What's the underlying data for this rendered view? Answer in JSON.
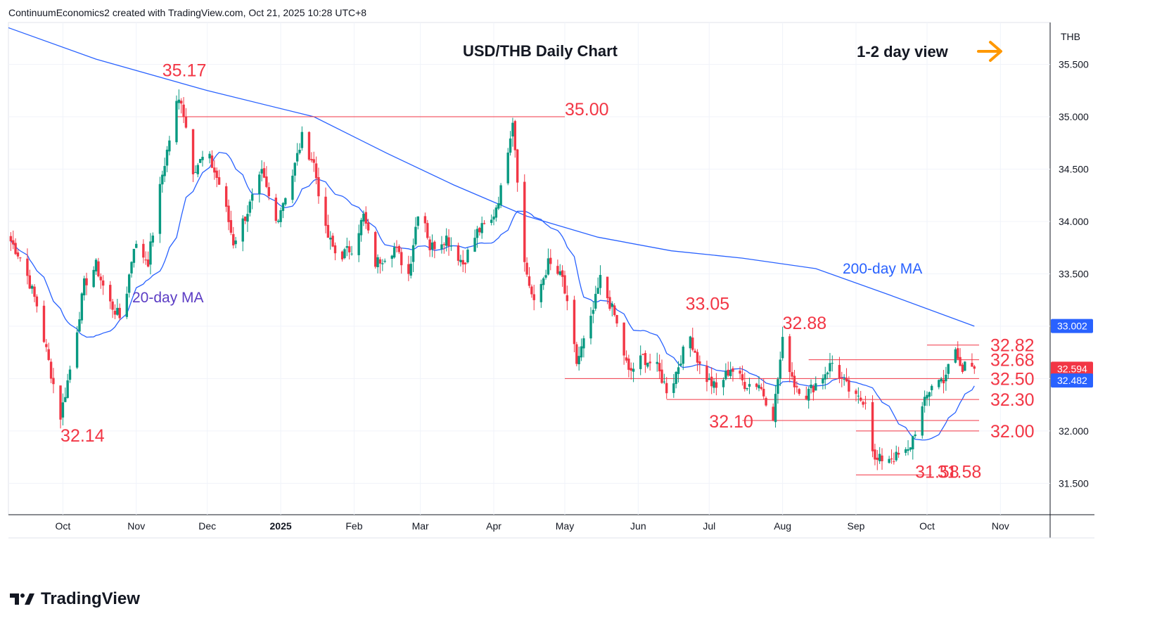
{
  "header": {
    "credit": "ContinuumEconomics2 created with TradingView.com, Oct 21, 2025 10:28 UTC+8"
  },
  "footer": {
    "brand": "TradingView",
    "logo_icon": "tradingview-logo-icon"
  },
  "colors": {
    "up": "#089981",
    "down": "#f23645",
    "ma20": "#2962ff",
    "ma200": "#2962ff",
    "level_line": "#f23645",
    "annotation": "#f23645",
    "ma20_label": "#5b3cc4",
    "ma200_label": "#2962ff",
    "arrow": "#ff9800",
    "last_price_badge": "#f23645",
    "ma_badge": "#2962ff",
    "ma200_badge": "#2962ff"
  },
  "chart_data": {
    "type": "candlestick",
    "title": "USD/THB Daily Chart",
    "view_label": "1-2 day view",
    "view_arrow_icon": "arrow-right-icon",
    "currency": "THB",
    "ylim": [
      31.2,
      35.9
    ],
    "y_ticks": [
      "31.500",
      "32.000",
      "32.500",
      "33.000",
      "33.500",
      "34.000",
      "34.500",
      "35.000",
      "35.500"
    ],
    "x_ticks": [
      {
        "label": "Oct",
        "date": "2024-10-01"
      },
      {
        "label": "Nov",
        "date": "2024-11-01"
      },
      {
        "label": "Dec",
        "date": "2024-12-01"
      },
      {
        "label": "2025",
        "date": "2025-01-01",
        "bold": true
      },
      {
        "label": "Feb",
        "date": "2025-02-01"
      },
      {
        "label": "Mar",
        "date": "2025-03-01"
      },
      {
        "label": "Apr",
        "date": "2025-04-01"
      },
      {
        "label": "May",
        "date": "2025-05-01"
      },
      {
        "label": "Jun",
        "date": "2025-06-01"
      },
      {
        "label": "Jul",
        "date": "2025-07-01"
      },
      {
        "label": "Aug",
        "date": "2025-08-01"
      },
      {
        "label": "Sep",
        "date": "2025-09-01"
      },
      {
        "label": "Oct",
        "date": "2025-10-01"
      },
      {
        "label": "Nov",
        "date": "2025-11-01"
      }
    ],
    "anchor_points": [
      [
        "2024-09-08",
        33.85
      ],
      [
        "2024-09-14",
        33.62
      ],
      [
        "2024-09-20",
        33.2
      ],
      [
        "2024-09-26",
        32.55
      ],
      [
        "2024-09-30",
        32.14
      ],
      [
        "2024-10-05",
        32.7
      ],
      [
        "2024-10-10",
        33.4
      ],
      [
        "2024-10-15",
        33.58
      ],
      [
        "2024-10-20",
        33.25
      ],
      [
        "2024-10-26",
        33.05
      ],
      [
        "2024-10-31",
        33.78
      ],
      [
        "2024-11-06",
        33.62
      ],
      [
        "2024-11-12",
        34.45
      ],
      [
        "2024-11-18",
        35.12
      ],
      [
        "2024-11-20",
        35.17
      ],
      [
        "2024-11-25",
        34.5
      ],
      [
        "2024-12-01",
        34.65
      ],
      [
        "2024-12-07",
        34.3
      ],
      [
        "2024-12-12",
        33.8
      ],
      [
        "2024-12-18",
        34.1
      ],
      [
        "2024-12-24",
        34.45
      ],
      [
        "2024-12-30",
        34.0
      ],
      [
        "2025-01-06",
        34.45
      ],
      [
        "2025-01-10",
        34.8
      ],
      [
        "2025-01-15",
        34.55
      ],
      [
        "2025-01-20",
        33.9
      ],
      [
        "2025-01-25",
        33.65
      ],
      [
        "2025-01-31",
        33.75
      ],
      [
        "2025-02-05",
        34.05
      ],
      [
        "2025-02-10",
        33.6
      ],
      [
        "2025-02-18",
        33.75
      ],
      [
        "2025-02-24",
        33.5
      ],
      [
        "2025-03-01",
        34.25
      ],
      [
        "2025-03-05",
        33.75
      ],
      [
        "2025-03-12",
        33.85
      ],
      [
        "2025-03-19",
        33.6
      ],
      [
        "2025-03-25",
        33.9
      ],
      [
        "2025-03-31",
        34.0
      ],
      [
        "2025-04-04",
        34.3
      ],
      [
        "2025-04-09",
        34.98
      ],
      [
        "2025-04-14",
        33.6
      ],
      [
        "2025-04-18",
        33.2
      ],
      [
        "2025-04-24",
        33.6
      ],
      [
        "2025-04-30",
        33.45
      ],
      [
        "2025-05-06",
        32.65
      ],
      [
        "2025-05-12",
        33.05
      ],
      [
        "2025-05-16",
        33.45
      ],
      [
        "2025-05-22",
        33.1
      ],
      [
        "2025-05-28",
        32.55
      ],
      [
        "2025-06-03",
        32.7
      ],
      [
        "2025-06-09",
        32.6
      ],
      [
        "2025-06-14",
        32.35
      ],
      [
        "2025-06-19",
        32.7
      ],
      [
        "2025-06-23",
        32.9
      ],
      [
        "2025-06-28",
        32.55
      ],
      [
        "2025-07-04",
        32.4
      ],
      [
        "2025-07-10",
        32.6
      ],
      [
        "2025-07-16",
        32.45
      ],
      [
        "2025-07-22",
        32.45
      ],
      [
        "2025-07-28",
        32.15
      ],
      [
        "2025-08-01",
        32.85
      ],
      [
        "2025-08-06",
        32.45
      ],
      [
        "2025-08-11",
        32.35
      ],
      [
        "2025-08-17",
        32.5
      ],
      [
        "2025-08-22",
        32.65
      ],
      [
        "2025-08-27",
        32.45
      ],
      [
        "2025-09-01",
        32.3
      ],
      [
        "2025-09-05",
        32.3
      ],
      [
        "2025-09-09",
        31.7
      ],
      [
        "2025-09-13",
        31.75
      ],
      [
        "2025-09-18",
        31.75
      ],
      [
        "2025-09-23",
        31.8
      ],
      [
        "2025-09-28",
        32.15
      ],
      [
        "2025-10-03",
        32.45
      ],
      [
        "2025-10-08",
        32.5
      ],
      [
        "2025-10-13",
        32.75
      ],
      [
        "2025-10-16",
        32.55
      ],
      [
        "2025-10-18",
        32.8
      ],
      [
        "2025-10-21",
        32.594
      ]
    ],
    "ma200_points": [
      [
        "2024-09-08",
        35.85
      ],
      [
        "2024-10-15",
        35.55
      ],
      [
        "2024-12-01",
        35.25
      ],
      [
        "2025-01-15",
        35.0
      ],
      [
        "2025-02-15",
        34.65
      ],
      [
        "2025-03-15",
        34.35
      ],
      [
        "2025-04-15",
        34.05
      ],
      [
        "2025-05-15",
        33.85
      ],
      [
        "2025-06-15",
        33.72
      ],
      [
        "2025-07-15",
        33.65
      ],
      [
        "2025-08-15",
        33.55
      ],
      [
        "2025-09-15",
        33.3
      ],
      [
        "2025-10-21",
        33.0
      ]
    ],
    "levels": [
      {
        "value": 35.0,
        "label": "35.00",
        "from": "2024-11-18",
        "to": "2025-05-01"
      },
      {
        "value": 32.82,
        "label": "32.82",
        "from": "2025-10-01",
        "to": "2025-10-23"
      },
      {
        "value": 32.68,
        "label": "32.68",
        "from": "2025-08-12",
        "to": "2025-10-23"
      },
      {
        "value": 32.5,
        "label": "32.50",
        "from": "2025-05-01",
        "to": "2025-10-23"
      },
      {
        "value": 32.3,
        "label": "32.30",
        "from": "2025-06-13",
        "to": "2025-10-23"
      },
      {
        "value": 32.1,
        "label": "32.10",
        "from": "2025-07-15",
        "to": "2025-10-23"
      },
      {
        "value": 32.0,
        "label": "32.00",
        "from": "2025-09-01",
        "to": "2025-10-23"
      },
      {
        "value": 31.58,
        "label": "31.58",
        "from": "2025-09-01",
        "to": "2025-10-03"
      }
    ],
    "annotations": [
      {
        "label": "35.17",
        "date": "2024-11-12",
        "value": 35.17
      },
      {
        "label": "35.00",
        "date": "2025-05-01",
        "value": 35.0
      },
      {
        "label": "33.05",
        "date": "2025-06-21",
        "value": 33.05
      },
      {
        "label": "32.88",
        "date": "2025-08-01",
        "value": 32.88
      },
      {
        "label": "32.14",
        "date": "2024-09-30",
        "value": 32.14
      },
      {
        "label": "32.10",
        "date": "2025-07-01",
        "value": 32.1
      },
      {
        "label": "31.58",
        "date": "2025-09-26",
        "value": 31.58
      }
    ],
    "ma_labels": {
      "ma20": "20-day MA",
      "ma200": "200-day MA"
    },
    "badges": {
      "ma200": "33.002",
      "last": "32.594",
      "ma20": "32.482"
    }
  }
}
